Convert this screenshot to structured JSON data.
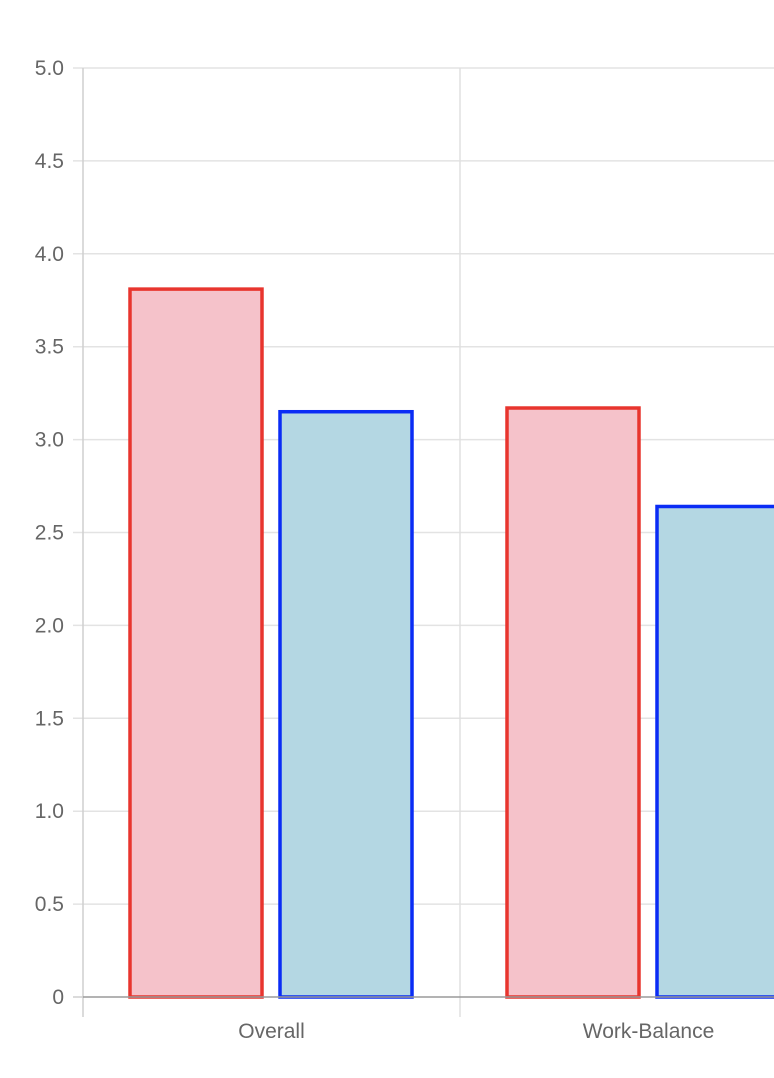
{
  "chart_data": {
    "type": "bar",
    "categories": [
      "Overall",
      "Work-Balance"
    ],
    "series": [
      {
        "values": [
          3.81,
          3.17
        ],
        "fill": "#f5c2ca",
        "stroke": "#e8352e"
      },
      {
        "values": [
          3.15,
          2.64
        ],
        "fill": "#b4d7e3",
        "stroke": "#0a2cf5"
      }
    ],
    "ylim": [
      0,
      5
    ],
    "yticks": [
      "0",
      "0.5",
      "1.0",
      "1.5",
      "2.0",
      "2.5",
      "3.0",
      "3.5",
      "4.0",
      "4.5",
      "5.0"
    ],
    "grid": true,
    "title": "",
    "xlabel": "",
    "ylabel": ""
  }
}
